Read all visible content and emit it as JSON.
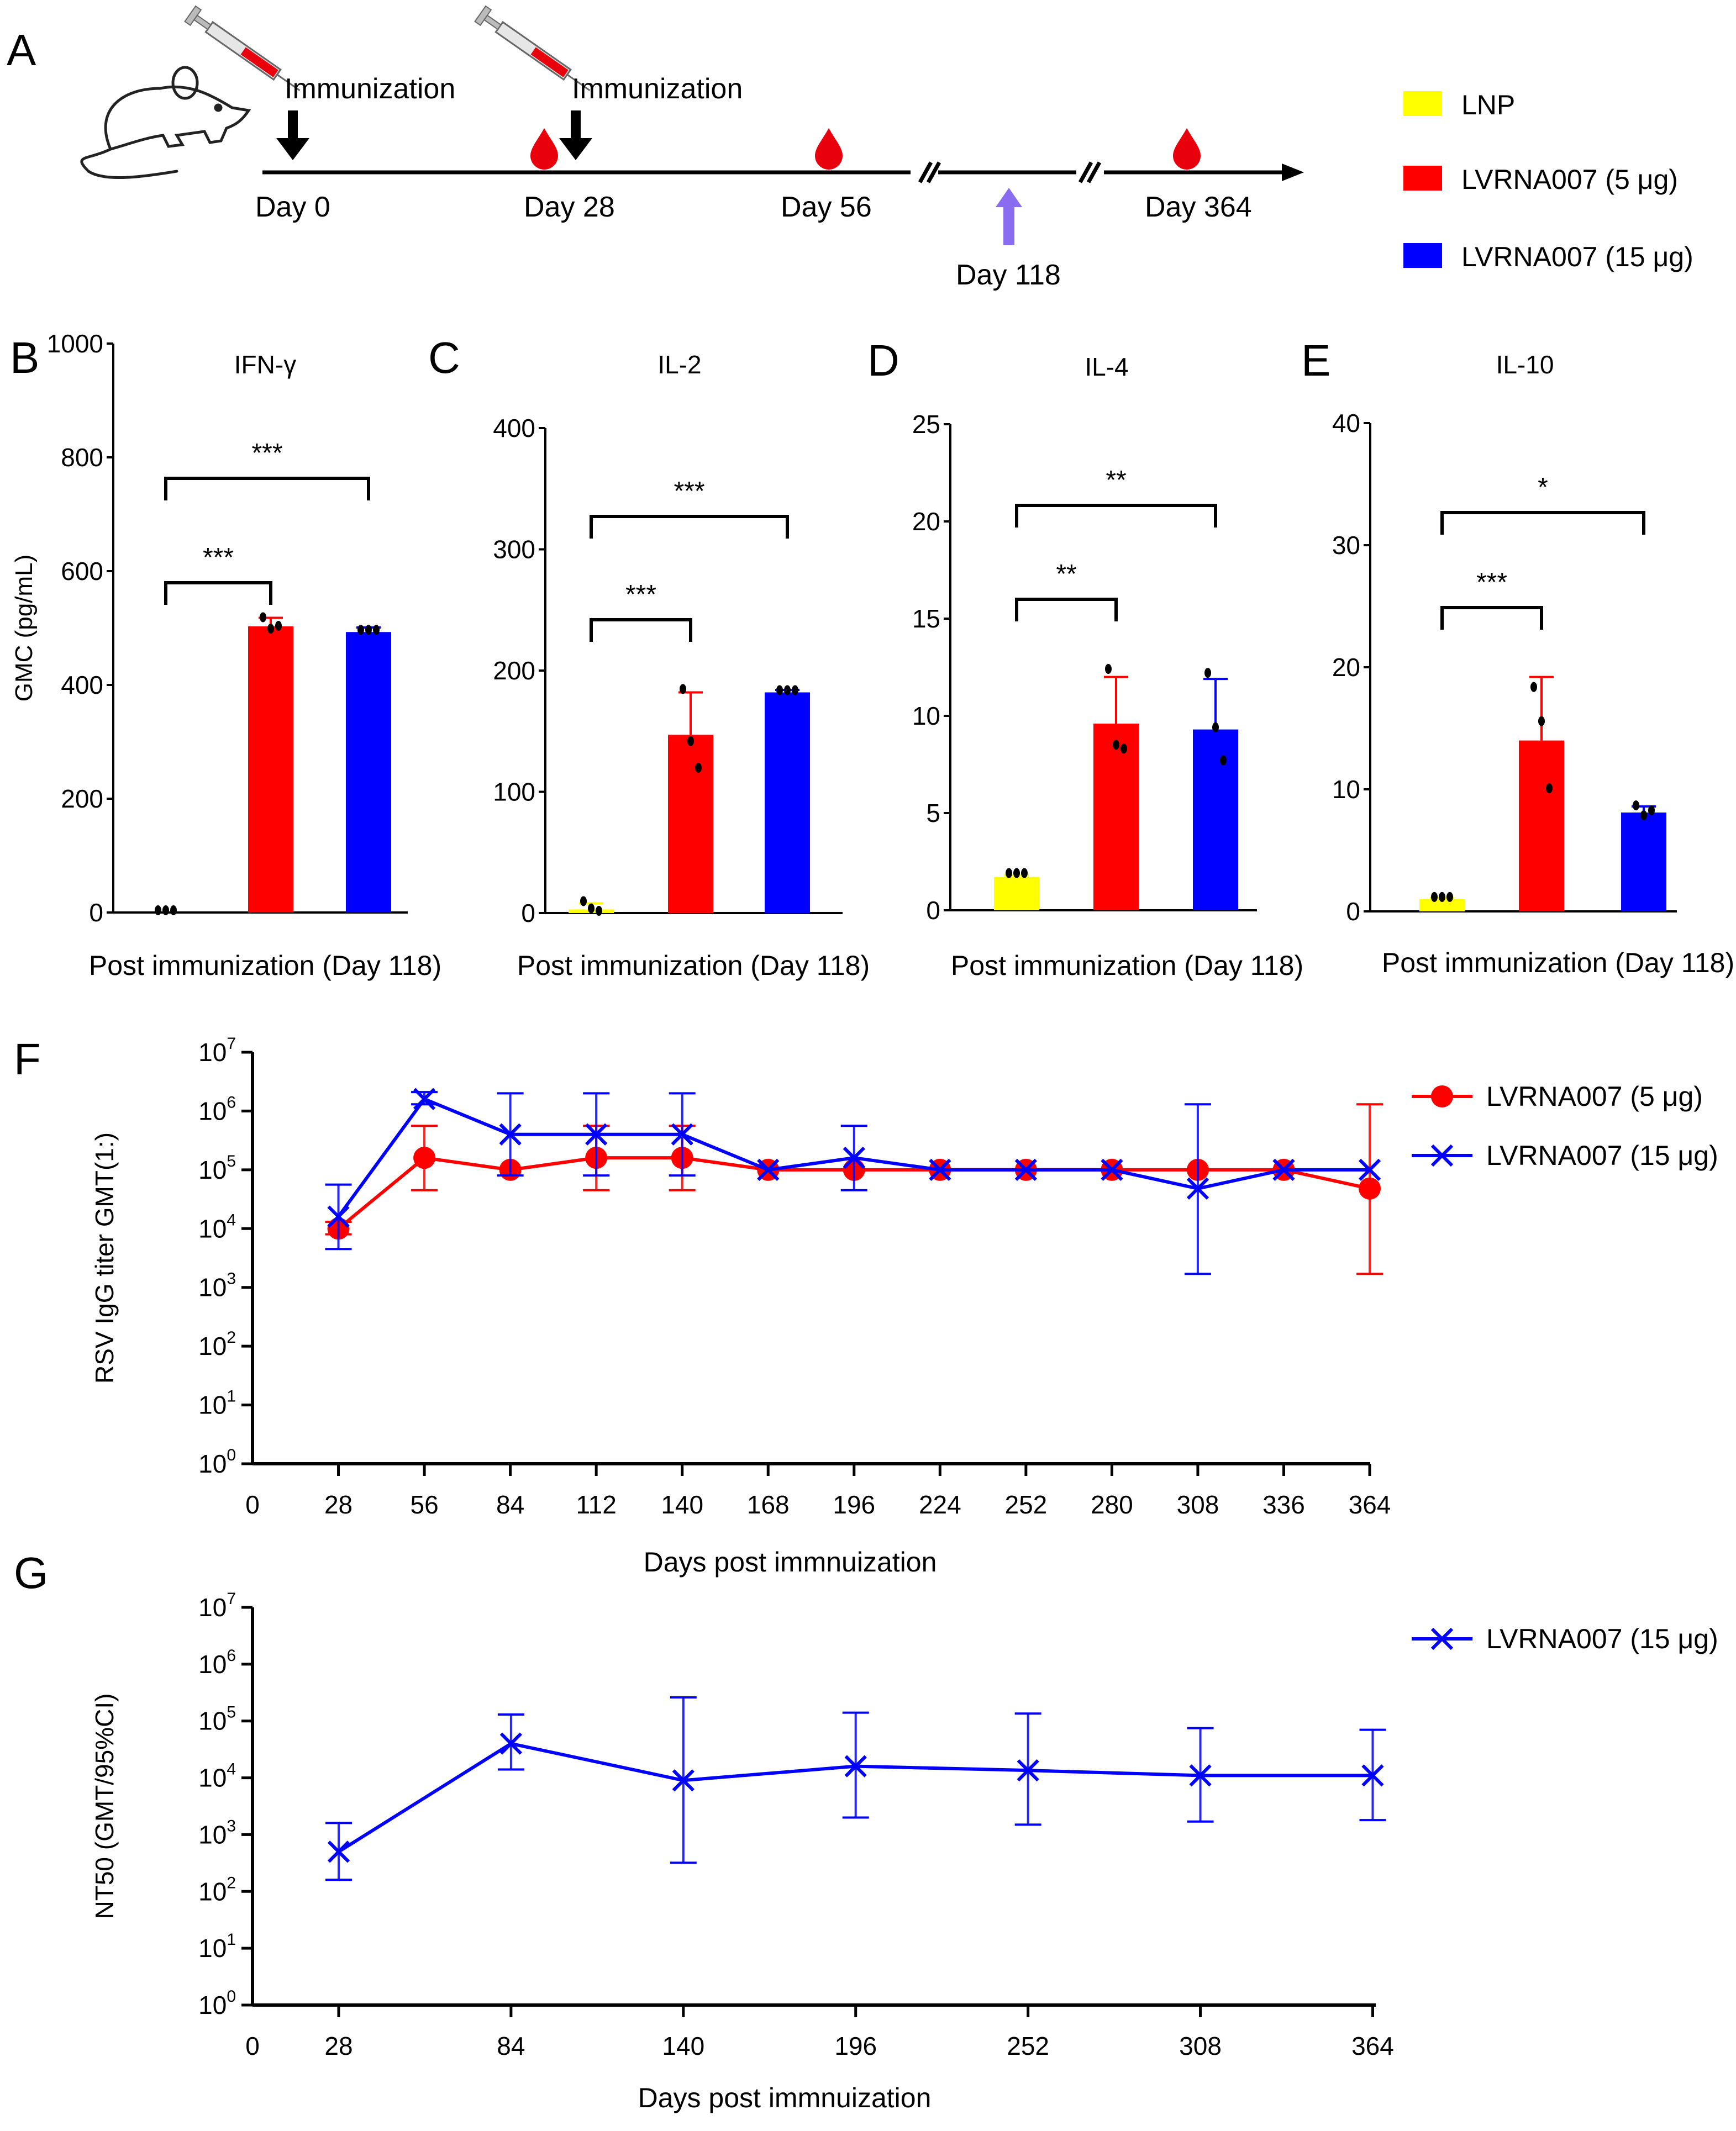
{
  "panel_letters": {
    "A": "A",
    "B": "B",
    "C": "C",
    "D": "D",
    "E": "E",
    "F": "F",
    "G": "G"
  },
  "colors": {
    "lnp": "#ffff00",
    "lv5": "#ff0000",
    "lv15": "#0000ff",
    "arrow_day118": "#8a6cf0",
    "blood": "#e8000d"
  },
  "schedule": {
    "immunization_1": "Immunization",
    "immunization_2": "Immunization",
    "day0": "Day 0",
    "day28": "Day 28",
    "day56": "Day 56",
    "day118": "Day 118",
    "day364": "Day 364",
    "icons": [
      "mouse-icon",
      "syringe-icon",
      "blood-drop-icon",
      "down-arrow-icon"
    ]
  },
  "legend_top": [
    {
      "label": "LNP",
      "color": "#ffff00"
    },
    {
      "label": "LVRNA007 (5 μg)",
      "color": "#ff0000"
    },
    {
      "label": "LVRNA007 (15 μg)",
      "color": "#0000ff"
    }
  ],
  "chart_data": [
    {
      "panel": "B",
      "type": "bar",
      "title": "IFN-γ",
      "ylabel": "GMC (pg/mL)",
      "xlabel": "Post immunization (Day 118)",
      "ylim": [
        0,
        1000
      ],
      "yticks": [
        "0",
        "200",
        "400",
        "600",
        "800",
        "1000"
      ],
      "categories": [
        "LNP",
        "LVRNA007 (5 μg)",
        "LVRNA007 (15 μg)"
      ],
      "values": [
        0,
        503,
        493
      ],
      "errors": [
        0,
        15,
        8
      ],
      "points": [
        [
          0,
          0,
          0
        ],
        [
          515,
          495,
          500
        ],
        [
          493,
          493,
          493
        ]
      ],
      "significance": [
        {
          "from": 0,
          "to": 1,
          "label": "***"
        },
        {
          "from": 0,
          "to": 2,
          "label": "***"
        }
      ]
    },
    {
      "panel": "C",
      "type": "bar",
      "title": "IL-2",
      "ylabel": "",
      "xlabel": "Post immunization (Day 118)",
      "ylim": [
        0,
        400
      ],
      "yticks": [
        "0",
        "100",
        "200",
        "300",
        "400"
      ],
      "categories": [
        "LNP",
        "LVRNA007 (5 μg)",
        "LVRNA007 (15 μg)"
      ],
      "values": [
        3,
        147,
        182
      ],
      "errors": [
        5,
        35,
        2
      ],
      "points": [
        [
          8,
          2,
          0
        ],
        [
          183,
          140,
          118
        ],
        [
          182,
          182,
          182
        ]
      ],
      "significance": [
        {
          "from": 0,
          "to": 1,
          "label": "***"
        },
        {
          "from": 0,
          "to": 2,
          "label": "***"
        }
      ]
    },
    {
      "panel": "D",
      "type": "bar",
      "title": "IL-4",
      "ylabel": "",
      "xlabel": "Post immunization (Day 118)",
      "ylim": [
        0,
        25
      ],
      "yticks": [
        "0",
        "5",
        "10",
        "15",
        "20",
        "25"
      ],
      "categories": [
        "LNP",
        "LVRNA007 (5 μg)",
        "LVRNA007 (15 μg)"
      ],
      "values": [
        1.7,
        9.6,
        9.3
      ],
      "errors": [
        0.1,
        2.4,
        2.6
      ],
      "points": [
        [
          1.8,
          1.8,
          1.8
        ],
        [
          12.3,
          8.4,
          8.2
        ],
        [
          12.1,
          9.3,
          7.6
        ]
      ],
      "significance": [
        {
          "from": 0,
          "to": 1,
          "label": "**"
        },
        {
          "from": 0,
          "to": 2,
          "label": "**"
        }
      ]
    },
    {
      "panel": "E",
      "type": "bar",
      "title": "IL-10",
      "ylabel": "",
      "xlabel": "Post immunization (Day 118)",
      "ylim": [
        0,
        40
      ],
      "yticks": [
        "0",
        "10",
        "20",
        "30",
        "40"
      ],
      "categories": [
        "LNP",
        "LVRNA007 (5 μg)",
        "LVRNA007 (15 μg)"
      ],
      "values": [
        1.0,
        14.0,
        8.1
      ],
      "errors": [
        0.1,
        5.2,
        0.5
      ],
      "points": [
        [
          1.0,
          1.0,
          1.0
        ],
        [
          18.2,
          15.4,
          9.9
        ],
        [
          8.5,
          7.7,
          8.1
        ]
      ],
      "significance": [
        {
          "from": 0,
          "to": 1,
          "label": "***"
        },
        {
          "from": 0,
          "to": 2,
          "label": "*"
        }
      ]
    },
    {
      "panel": "F",
      "type": "line",
      "title": "",
      "ylabel": "RSV IgG titer GMT(1:)",
      "xlabel": "Days post immnuization",
      "yscale": "log",
      "ylim_exp": [
        0,
        7
      ],
      "xlim": [
        0,
        364
      ],
      "xticks": [
        0,
        28,
        56,
        84,
        112,
        140,
        168,
        196,
        224,
        252,
        280,
        308,
        336,
        364
      ],
      "series": [
        {
          "name": "LVRNA007 (5 μg)",
          "color": "#ff0000",
          "marker": "circle",
          "x": [
            28,
            56,
            84,
            112,
            140,
            168,
            196,
            224,
            252,
            280,
            308,
            336,
            364
          ],
          "y": [
            10000,
            160000,
            100000,
            160000,
            160000,
            100000,
            100000,
            100000,
            100000,
            100000,
            100000,
            100000,
            48000
          ],
          "ylow": [
            8000,
            45000,
            100000,
            45000,
            45000,
            100000,
            100000,
            100000,
            100000,
            100000,
            100000,
            100000,
            1700
          ],
          "yhigh": [
            13000,
            560000,
            100000,
            560000,
            560000,
            100000,
            100000,
            100000,
            100000,
            100000,
            100000,
            100000,
            1300000
          ]
        },
        {
          "name": "LVRNA007 (15 μg)",
          "color": "#0000ff",
          "marker": "x",
          "x": [
            28,
            56,
            84,
            112,
            140,
            168,
            196,
            224,
            252,
            280,
            308,
            336,
            364
          ],
          "y": [
            16000,
            1600000,
            400000,
            400000,
            400000,
            100000,
            160000,
            100000,
            100000,
            100000,
            48000,
            100000,
            100000
          ],
          "ylow": [
            4500,
            1300000,
            80000,
            80000,
            80000,
            100000,
            45000,
            100000,
            100000,
            100000,
            1700,
            100000,
            100000
          ],
          "yhigh": [
            56000,
            2100000,
            2000000,
            2000000,
            2000000,
            100000,
            560000,
            100000,
            100000,
            100000,
            1300000,
            100000,
            100000
          ]
        }
      ]
    },
    {
      "panel": "G",
      "type": "line",
      "title": "",
      "ylabel": "NT50 (GMT/95%CI)",
      "xlabel": "Days post immnuization",
      "yscale": "log",
      "ylim_exp": [
        0,
        7
      ],
      "xlim": [
        0,
        364
      ],
      "xticks": [
        0,
        28,
        84,
        140,
        196,
        252,
        308,
        364
      ],
      "series": [
        {
          "name": "LVRNA007 (15 μg)",
          "color": "#0000ff",
          "marker": "x",
          "x": [
            28,
            84,
            140,
            196,
            252,
            308,
            364
          ],
          "y": [
            500,
            40000,
            9000,
            16000,
            13500,
            11000,
            11000
          ],
          "ylow": [
            160,
            14000,
            320,
            2000,
            1500,
            1700,
            1800
          ],
          "yhigh": [
            1600,
            130000,
            260000,
            140000,
            135000,
            75000,
            70000
          ]
        }
      ]
    }
  ]
}
